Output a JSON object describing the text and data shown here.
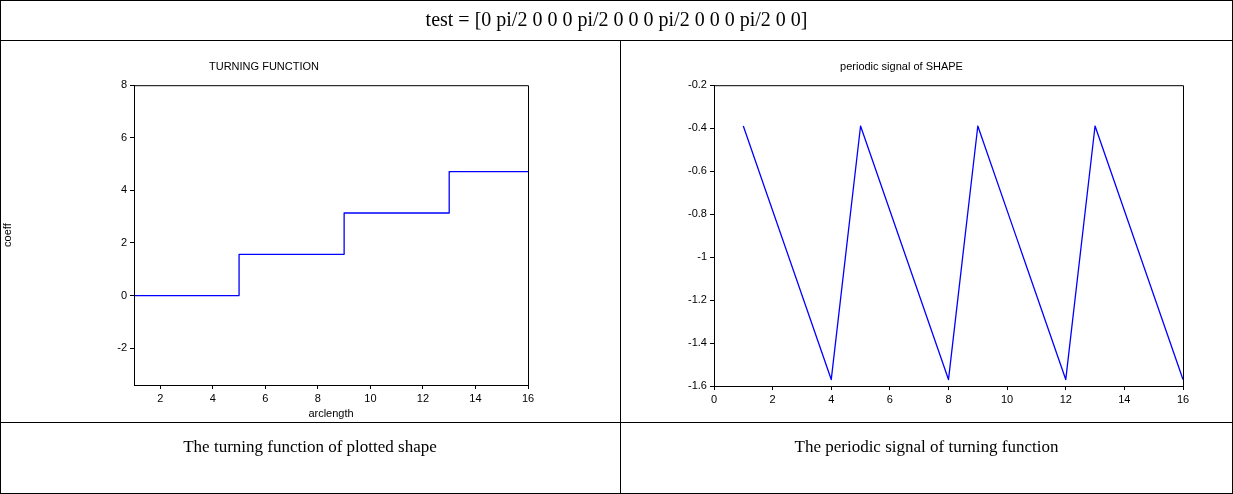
{
  "chart_data": [
    {
      "type": "other",
      "title": "test = [0 pi/2 0 0 0 pi/2 0 0 0 pi/2 0 0 0 pi/2 0 0]"
    },
    {
      "type": "step",
      "title": "TURNING FUNCTION",
      "xlabel": "arclength",
      "ylabel": "coeff",
      "x": [
        1,
        5,
        9,
        13,
        16
      ],
      "series": [
        {
          "color": "#0000ff",
          "values": [
            0,
            1.57,
            3.14,
            4.71,
            4.71
          ]
        }
      ],
      "xlim": [
        1,
        16
      ],
      "xticks": [
        2,
        4,
        6,
        8,
        10,
        12,
        14,
        16
      ],
      "ylim": [
        -3.4,
        8
      ],
      "yticks": [
        -2,
        0,
        2,
        4,
        6,
        8
      ],
      "marker": "none",
      "annotations": [
        "The turning function of plotted shape"
      ]
    },
    {
      "type": "line",
      "title": "periodic signal of SHAPE",
      "x": [
        1,
        4,
        5,
        8,
        9,
        12,
        13,
        16
      ],
      "series": [
        {
          "color": "#0000ff",
          "values": [
            -0.39,
            -1.57,
            -0.39,
            -1.57,
            -0.39,
            -1.57,
            -0.39,
            -1.57
          ]
        }
      ],
      "xlim": [
        0,
        16
      ],
      "xticks": [
        0,
        2,
        4,
        6,
        8,
        10,
        12,
        14,
        16
      ],
      "ylim": [
        -1.6,
        -0.2
      ],
      "yticks": [
        -1.6,
        -1.4,
        -1.2,
        -1,
        -0.8,
        -0.6,
        -0.4,
        -0.2
      ],
      "marker": "none",
      "annotations": [
        "The periodic signal of turning function"
      ]
    }
  ]
}
